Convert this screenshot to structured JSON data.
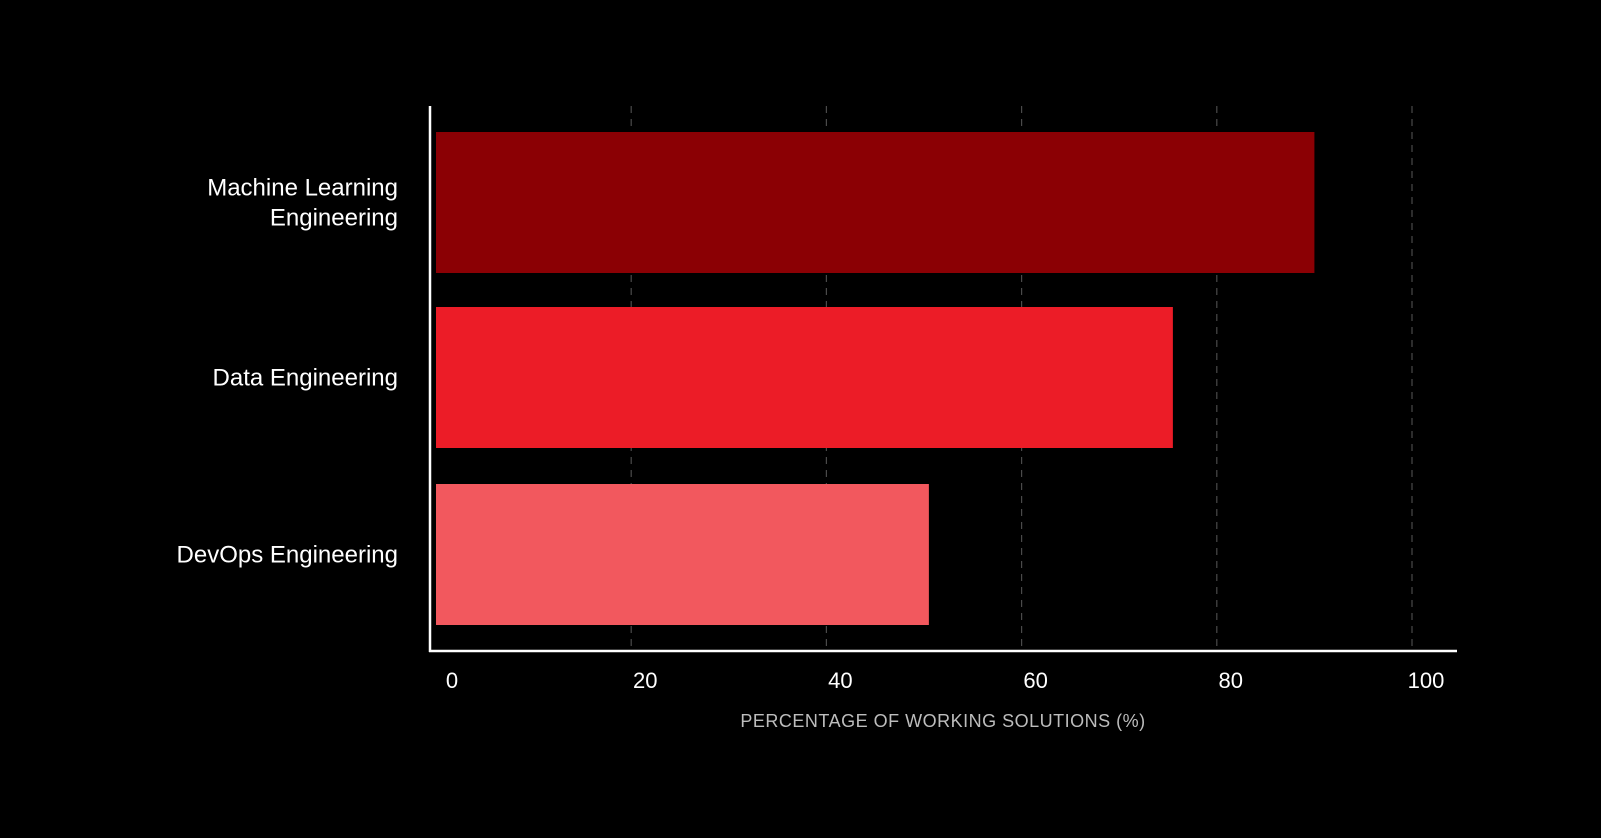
{
  "chart_data": {
    "type": "bar",
    "orientation": "horizontal",
    "categories": [
      "Machine Learning\nEngineering",
      "Data Engineering",
      "DevOps Engineering"
    ],
    "values": [
      90,
      75.5,
      50.5
    ],
    "colors": [
      "#8b0004",
      "#ec1c27",
      "#f2585e"
    ],
    "title": "",
    "xlabel": "PERCENTAGE OF WORKING SOLUTIONS (%)",
    "ylabel": "",
    "xlim": [
      0,
      100
    ],
    "xticks": [
      0,
      20,
      40,
      60,
      80,
      100
    ],
    "xtick_labels": [
      "0",
      "20",
      "40",
      "60",
      "80",
      "100"
    ],
    "grid": "vertical dashed",
    "legend": "none"
  },
  "style": {
    "background": "#000000",
    "axis_color": "#ffffff",
    "grid_color": "#4a4a4a",
    "label_color": "#ffffff",
    "axis_title_color": "#bdbdbd"
  }
}
